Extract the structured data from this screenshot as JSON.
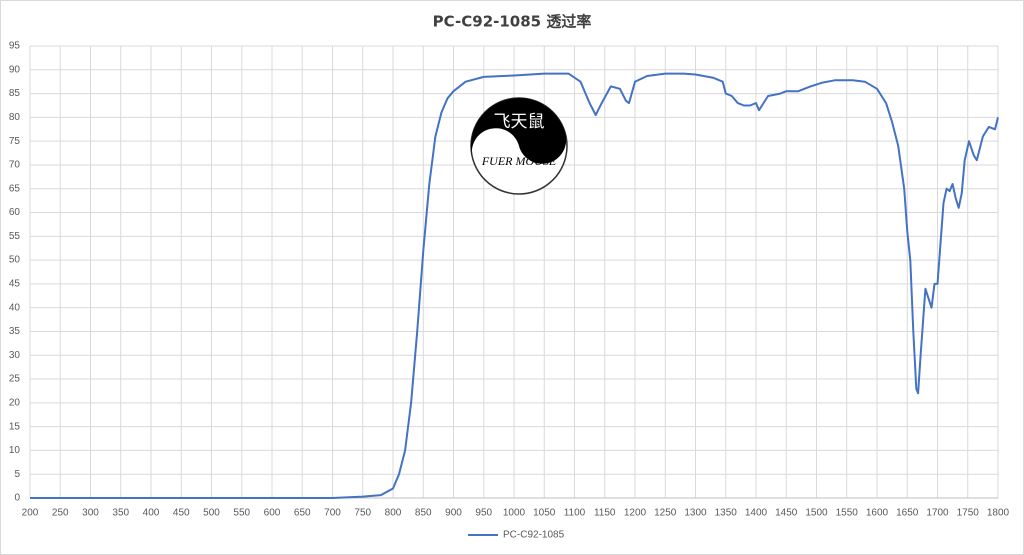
{
  "chart_data": {
    "type": "line",
    "title": "PC-C92-1085 透过率",
    "x": [
      200,
      300,
      400,
      500,
      600,
      700,
      750,
      780,
      800,
      810,
      820,
      830,
      840,
      850,
      860,
      870,
      880,
      890,
      900,
      920,
      950,
      1000,
      1050,
      1090,
      1110,
      1125,
      1135,
      1145,
      1160,
      1175,
      1185,
      1190,
      1200,
      1220,
      1250,
      1280,
      1300,
      1330,
      1345,
      1350,
      1360,
      1370,
      1380,
      1390,
      1400,
      1405,
      1410,
      1420,
      1440,
      1450,
      1470,
      1490,
      1510,
      1530,
      1560,
      1580,
      1600,
      1615,
      1625,
      1635,
      1645,
      1650,
      1655,
      1660,
      1665,
      1668,
      1672,
      1680,
      1690,
      1695,
      1700,
      1710,
      1715,
      1720,
      1725,
      1730,
      1735,
      1740,
      1745,
      1752,
      1760,
      1765,
      1775,
      1785,
      1795,
      1800
    ],
    "series": [
      {
        "name": "PC-C92-1085",
        "color": "#4472c4",
        "values": [
          0,
          0,
          0,
          0,
          0,
          0,
          0.3,
          0.6,
          2,
          5,
          10,
          20,
          35,
          52,
          66,
          76,
          81,
          84,
          85.5,
          87.5,
          88.5,
          88.8,
          89.2,
          89.2,
          87.5,
          83,
          80.5,
          83,
          86.5,
          86,
          83.5,
          83,
          87.5,
          88.7,
          89.2,
          89.2,
          89,
          88.3,
          87.5,
          85,
          84.5,
          83,
          82.5,
          82.5,
          83,
          81.5,
          82.5,
          84.5,
          85,
          85.5,
          85.5,
          86.5,
          87.3,
          87.8,
          87.8,
          87.5,
          86,
          83,
          79,
          74,
          65,
          56,
          50,
          35,
          23,
          22,
          30,
          44,
          40,
          45,
          45,
          62,
          65,
          64.5,
          66,
          63,
          61,
          64,
          71,
          75,
          72,
          71,
          76,
          78,
          77.5,
          80
        ]
      }
    ],
    "xlim": [
      200,
      1800
    ],
    "xticks": [
      200,
      250,
      300,
      350,
      400,
      450,
      500,
      550,
      600,
      650,
      700,
      750,
      800,
      850,
      900,
      950,
      1000,
      1050,
      1100,
      1150,
      1200,
      1250,
      1300,
      1350,
      1400,
      1450,
      1500,
      1550,
      1600,
      1650,
      1700,
      1750,
      1800
    ],
    "ylim": [
      0,
      95
    ],
    "yticks": [
      0,
      5,
      10,
      15,
      20,
      25,
      30,
      35,
      40,
      45,
      50,
      55,
      60,
      65,
      70,
      75,
      80,
      85,
      90,
      95
    ],
    "grid": true,
    "legend": "bottom",
    "watermark": [
      "飞天鼠",
      "FUER MOUSE"
    ]
  }
}
